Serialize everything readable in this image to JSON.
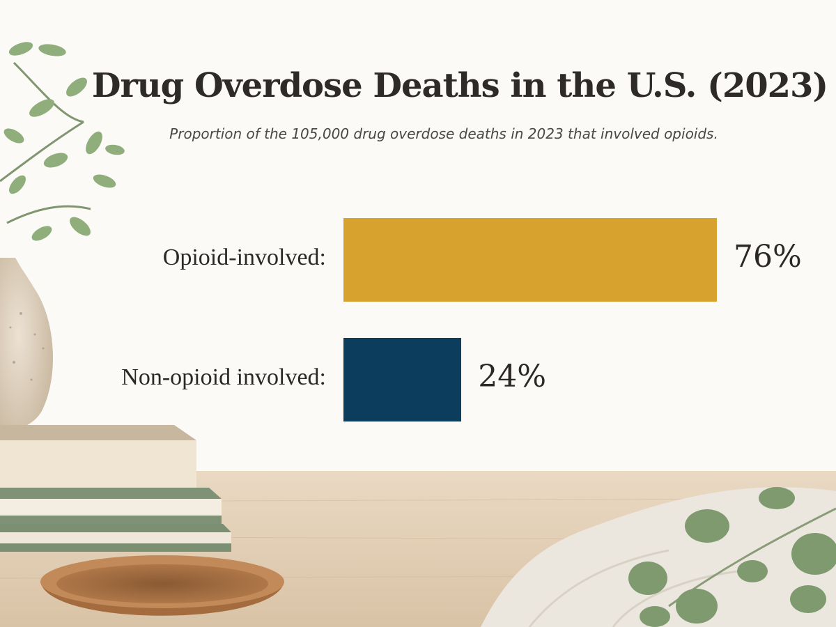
{
  "chart_data": {
    "type": "bar",
    "orientation": "horizontal",
    "title": "Drug Overdose Deaths in the U.S. (2023)",
    "subtitle": "Proportion of the 105,000 drug overdose deaths in 2023 that involved opioids.",
    "categories": [
      "Opioid-involved:",
      "Non-opioid involved:"
    ],
    "values": [
      76,
      24
    ],
    "value_labels": [
      "76%",
      "24%"
    ],
    "colors": [
      "#d8a22e",
      "#0c3d5c"
    ],
    "unit": "%",
    "grid": false,
    "legend": "none"
  },
  "background": {
    "wall": "#fbfaf7",
    "table": "#e4d3bd",
    "decor_icons": [
      "eucalyptus-branch-icon",
      "ceramic-vase-icon",
      "book-stack-icon",
      "wooden-bowl-icon",
      "linen-cloth-icon"
    ]
  }
}
